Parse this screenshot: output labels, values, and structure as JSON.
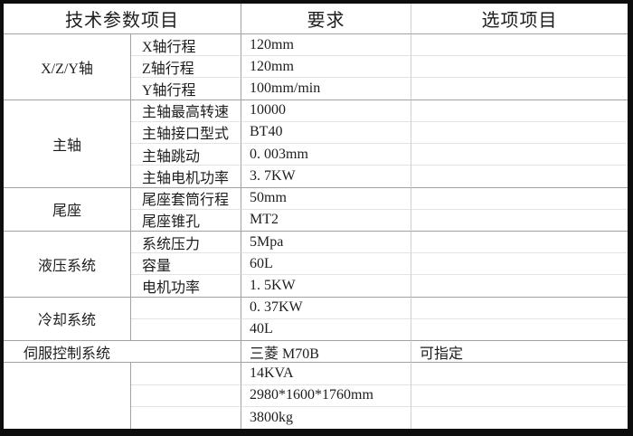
{
  "colors": {
    "outer_border": "#0d0d0d",
    "line_dark": "#a2a2a2",
    "line_light": "#e3e3e3",
    "line_options_divider": "#cfcfcf",
    "text": "#1d1d1d",
    "background": "#ffffff"
  },
  "table": {
    "headers": {
      "param": "技术参数项目",
      "requirement": "要求",
      "options": "选项项目"
    },
    "groups": [
      {
        "label": "X/Z/Y轴",
        "rows": 3
      },
      {
        "label": "主轴",
        "rows": 4
      },
      {
        "label": "尾座",
        "rows": 2
      },
      {
        "label": "液压系统",
        "rows": 3
      },
      {
        "label": "冷却系统",
        "rows": 2
      },
      {
        "label": "伺服控制系统",
        "rows": 1
      },
      {
        "label": "",
        "rows": 3
      }
    ],
    "rows": [
      {
        "param": "X轴行程",
        "value": "120mm",
        "option": ""
      },
      {
        "param": "Z轴行程",
        "value": "120mm",
        "option": ""
      },
      {
        "param": "Y轴行程",
        "value": "100mm/min",
        "option": ""
      },
      {
        "param": "主轴最高转速",
        "value": "10000",
        "option": ""
      },
      {
        "param": "主轴接口型式",
        "value": "BT40",
        "option": ""
      },
      {
        "param": "主轴跳动",
        "value": "0. 003mm",
        "option": ""
      },
      {
        "param": "主轴电机功率",
        "value": "3. 7KW",
        "option": ""
      },
      {
        "param": "尾座套筒行程",
        "value": "50mm",
        "option": ""
      },
      {
        "param": "尾座锥孔",
        "value": "MT2",
        "option": ""
      },
      {
        "param": "系统压力",
        "value": "5Mpa",
        "option": ""
      },
      {
        "param": "容量",
        "value": "60L",
        "option": ""
      },
      {
        "param": "电机功率",
        "value": "1. 5KW",
        "option": ""
      },
      {
        "param": "",
        "value": "0. 37KW",
        "option": ""
      },
      {
        "param": "",
        "value": "40L",
        "option": ""
      },
      {
        "param": "",
        "value": "三菱 M70B",
        "option": "可指定"
      },
      {
        "param": "",
        "value": "14KVA",
        "option": ""
      },
      {
        "param": "",
        "value": "2980*1600*1760mm",
        "option": ""
      },
      {
        "param": "",
        "value": "3800kg",
        "option": ""
      }
    ]
  }
}
